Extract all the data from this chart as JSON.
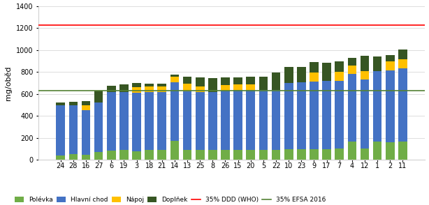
{
  "categories": [
    "24",
    "28",
    "16",
    "27",
    "6",
    "19",
    "3",
    "18",
    "21",
    "14",
    "13",
    "25",
    "8",
    "26",
    "15",
    "20",
    "5",
    "22",
    "10",
    "23",
    "9",
    "17",
    "7",
    "4",
    "12",
    "1",
    "2",
    "11"
  ],
  "polevka": [
    40,
    50,
    45,
    75,
    85,
    90,
    80,
    90,
    90,
    175,
    90,
    90,
    90,
    90,
    90,
    90,
    90,
    90,
    100,
    100,
    100,
    100,
    105,
    165,
    105,
    165,
    160,
    165
  ],
  "hlavni": [
    455,
    445,
    405,
    445,
    535,
    530,
    530,
    530,
    530,
    530,
    535,
    530,
    530,
    540,
    545,
    545,
    545,
    545,
    600,
    605,
    615,
    620,
    615,
    615,
    625,
    645,
    655,
    670
  ],
  "napoj": [
    0,
    0,
    50,
    0,
    0,
    0,
    50,
    50,
    50,
    50,
    70,
    50,
    0,
    50,
    50,
    50,
    0,
    0,
    0,
    0,
    80,
    0,
    80,
    80,
    80,
    0,
    80,
    80
  ],
  "doplnek": [
    25,
    35,
    35,
    110,
    55,
    65,
    40,
    25,
    25,
    20,
    60,
    80,
    125,
    70,
    65,
    70,
    120,
    160,
    145,
    140,
    95,
    165,
    95,
    70,
    140,
    130,
    60,
    90
  ],
  "line_who": 1225,
  "line_efsa": 630,
  "color_polevka": "#70ad47",
  "color_hlavni": "#4472c4",
  "color_napoj": "#ffc000",
  "color_doplnek": "#375623",
  "color_who": "#ff0000",
  "color_efsa": "#548235",
  "ylabel": "mg/oběd",
  "ylim": [
    0,
    1400
  ],
  "yticks": [
    0,
    200,
    400,
    600,
    800,
    1000,
    1200,
    1400
  ],
  "legend_labels": [
    "Polévka",
    "Hlavní chod",
    "Nápoj",
    "Doplňek",
    "35% DDD (WHO)",
    "35% EFSA 2016"
  ]
}
